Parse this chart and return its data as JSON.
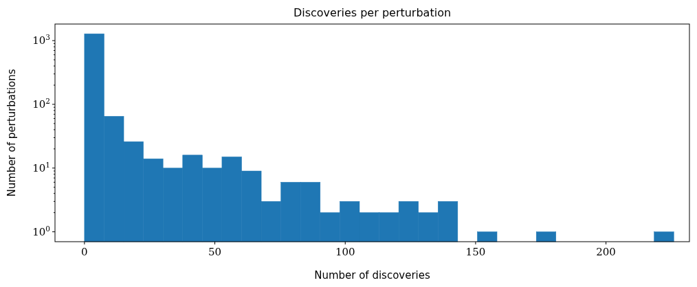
{
  "chart_data": {
    "type": "histogram",
    "title": "Discoveries per perturbation",
    "xlabel": "Number of discoveries",
    "ylabel": "Number of perturbations",
    "color": "#1f77b4",
    "log": "y",
    "bins": [
      0,
      7.53,
      15.07,
      22.6,
      30.13,
      37.67,
      45.2,
      52.73,
      60.27,
      67.8,
      75.33,
      82.87,
      90.4,
      97.93,
      105.47,
      113,
      120.53,
      128.07,
      135.6,
      143.13,
      150.67,
      158.2,
      165.73,
      173.27,
      180.8,
      188.33,
      195.87,
      203.4,
      210.93,
      218.47,
      226
    ],
    "values": [
      1280,
      65,
      26,
      14,
      10,
      16,
      10,
      15,
      9,
      3,
      6,
      6,
      2,
      3,
      2,
      2,
      3,
      2,
      3,
      null,
      1,
      null,
      null,
      1,
      null,
      null,
      null,
      null,
      null,
      1
    ],
    "xlim": [
      -11.3,
      232
    ],
    "xticks": [
      0,
      50,
      100,
      150,
      200
    ],
    "ylim": [
      0.7,
      1820
    ],
    "yticks": [
      {
        "value": 1,
        "label": "10$^{0}$"
      },
      {
        "value": 2,
        "label": null
      },
      {
        "value": 3,
        "label": null
      },
      {
        "value": 4,
        "label": null
      },
      {
        "value": 5,
        "label": null
      },
      {
        "value": 6,
        "label": null
      },
      {
        "value": 7,
        "label": null
      },
      {
        "value": 8,
        "label": null
      },
      {
        "value": 9,
        "label": null
      },
      {
        "value": 10,
        "label": "10$^{1}$"
      },
      {
        "value": 20,
        "label": null
      },
      {
        "value": 30,
        "label": null
      },
      {
        "value": 40,
        "label": null
      },
      {
        "value": 50,
        "label": null
      },
      {
        "value": 60,
        "label": null
      },
      {
        "value": 70,
        "label": null
      },
      {
        "value": 80,
        "label": null
      },
      {
        "value": 90,
        "label": null
      },
      {
        "value": 100,
        "label": "10$^{2}$"
      },
      {
        "value": 200,
        "label": null
      },
      {
        "value": 300,
        "label": null
      },
      {
        "value": 400,
        "label": null
      },
      {
        "value": 500,
        "label": null
      },
      {
        "value": 600,
        "label": null
      },
      {
        "value": 700,
        "label": null
      },
      {
        "value": 800,
        "label": null
      },
      {
        "value": 900,
        "label": null
      },
      {
        "value": 1000,
        "label": "10$^{3}$"
      }
    ]
  }
}
